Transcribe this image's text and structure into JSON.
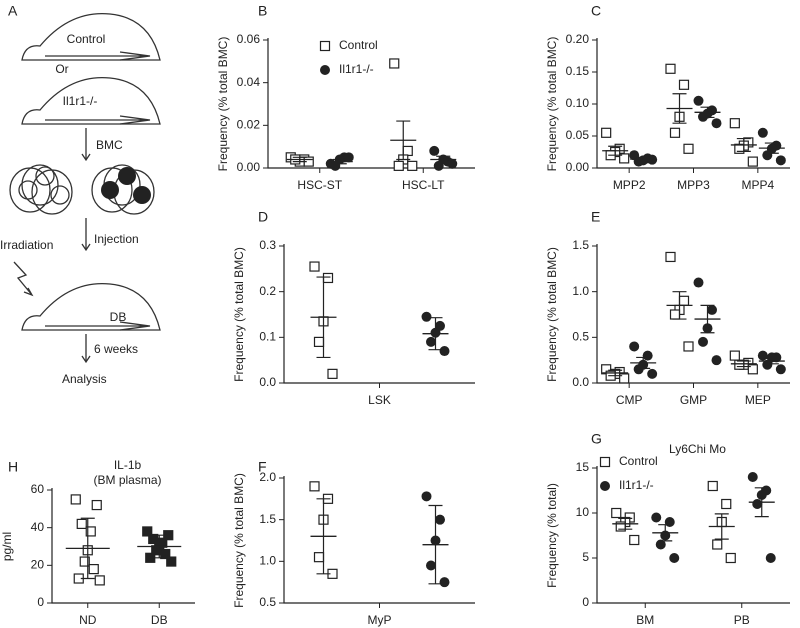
{
  "diagram": {
    "panel": "A",
    "labels": [
      "Control",
      "Or",
      "Il1r1-/-",
      "BMC",
      "Irradiation",
      "Injection",
      "DB",
      "6 weeks",
      "Analysis"
    ]
  },
  "chart_data": [
    {
      "panel": "B",
      "type": "dot",
      "ylabel": "Frequency (% total BMC)",
      "ylim": [
        0,
        0.06
      ],
      "yticks": [
        {
          "value": 0,
          "label": "0.00"
        },
        {
          "value": 0.02,
          "label": "0.02"
        },
        {
          "value": 0.04,
          "label": "0.04"
        },
        {
          "value": 0.06,
          "label": "0.06"
        }
      ],
      "categories": [
        "HSC-ST",
        "HSC-LT"
      ],
      "legend": "upper-left",
      "series": [
        {
          "name": "Control",
          "marker": "open-square",
          "color": "#222222",
          "points": [
            [
              0.005,
              0.004,
              0.003,
              0.004,
              0.003
            ],
            [
              0.049,
              0.008,
              0.004,
              0.001,
              0.001
            ]
          ],
          "mean": [
            0.004,
            0.013
          ],
          "error": [
            0.001,
            0.009
          ]
        },
        {
          "name": "Il1r1-/-",
          "marker": "filled-circle",
          "color": "#222222",
          "points": [
            [
              0.002,
              0.005,
              0.004,
              0.001,
              0.005
            ],
            [
              0.008,
              0.003,
              0.004,
              0.001,
              0.002
            ]
          ],
          "mean": [
            0.003,
            0.004
          ],
          "error": [
            0.001,
            0.0015
          ]
        }
      ]
    },
    {
      "panel": "C",
      "type": "dot",
      "ylabel": "Frequency (% total BMC)",
      "ylim": [
        0,
        0.2
      ],
      "yticks": [
        {
          "value": 0,
          "label": "0.00"
        },
        {
          "value": 0.05,
          "label": "0.05"
        },
        {
          "value": 0.1,
          "label": "0.10"
        },
        {
          "value": 0.15,
          "label": "0.15"
        },
        {
          "value": 0.2,
          "label": "0.20"
        }
      ],
      "categories": [
        "MPP2",
        "MPP3",
        "MPP4"
      ],
      "series": [
        {
          "marker": "open-square",
          "color": "#222222",
          "points": [
            [
              0.055,
              0.03,
              0.025,
              0.02,
              0.015
            ],
            [
              0.155,
              0.13,
              0.08,
              0.055,
              0.03
            ],
            [
              0.07,
              0.04,
              0.035,
              0.03,
              0.01
            ]
          ],
          "mean": [
            0.027,
            0.093,
            0.036
          ],
          "error": [
            0.007,
            0.023,
            0.01
          ]
        },
        {
          "marker": "filled-circle",
          "color": "#222222",
          "points": [
            [
              0.02,
              0.015,
              0.012,
              0.01,
              0.013
            ],
            [
              0.105,
              0.09,
              0.085,
              0.08,
              0.07
            ],
            [
              0.055,
              0.035,
              0.03,
              0.02,
              0.012
            ]
          ],
          "mean": [
            0.014,
            0.087,
            0.031
          ],
          "error": [
            0.002,
            0.008,
            0.008
          ]
        }
      ]
    },
    {
      "panel": "D",
      "type": "dot",
      "ylabel": "Frequency (% total BMC)",
      "ylim": [
        0,
        0.3
      ],
      "yticks": [
        {
          "value": 0,
          "label": "0.0"
        },
        0.1,
        0.2,
        0.3
      ],
      "categories": [
        "LSK"
      ],
      "series": [
        {
          "marker": "open-square",
          "color": "#222222",
          "points": [
            [
              0.255,
              0.23,
              0.135,
              0.09,
              0.02
            ]
          ],
          "mean": [
            0.144
          ],
          "error": [
            0.088
          ]
        },
        {
          "marker": "filled-circle",
          "color": "#222222",
          "points": [
            [
              0.145,
              0.125,
              0.11,
              0.09,
              0.07
            ]
          ],
          "mean": [
            0.108
          ],
          "error": [
            0.035
          ]
        }
      ]
    },
    {
      "panel": "E",
      "type": "dot",
      "ylabel": "Frequency (% total BMC)",
      "ylim": [
        0,
        1.5
      ],
      "yticks": [
        {
          "value": 0,
          "label": "0.0"
        },
        0.5,
        {
          "value": 1,
          "label": "1.0"
        },
        1.5
      ],
      "categories": [
        "CMP",
        "GMP",
        "MEP"
      ],
      "series": [
        {
          "marker": "open-square",
          "color": "#222222",
          "points": [
            [
              0.15,
              0.12,
              0.1,
              0.08,
              0.05
            ],
            [
              1.38,
              0.9,
              0.8,
              0.75,
              0.4
            ],
            [
              0.3,
              0.22,
              0.2,
              0.2,
              0.15
            ]
          ],
          "mean": [
            0.11,
            0.85,
            0.21
          ],
          "error": [
            0.03,
            0.15,
            0.03
          ]
        },
        {
          "marker": "filled-circle",
          "color": "#222222",
          "points": [
            [
              0.4,
              0.3,
              0.2,
              0.15,
              0.1
            ],
            [
              1.1,
              0.8,
              0.6,
              0.45,
              0.25
            ],
            [
              0.3,
              0.28,
              0.28,
              0.2,
              0.15
            ]
          ],
          "mean": [
            0.22,
            0.7,
            0.24
          ],
          "error": [
            0.06,
            0.15,
            0.03
          ]
        }
      ]
    },
    {
      "panel": "H",
      "type": "dot",
      "title": [
        "IL-1b",
        "(BM plasma)"
      ],
      "ylabel": "pg/ml",
      "ylim": [
        0,
        60
      ],
      "yticks": [
        0,
        20,
        40,
        60
      ],
      "categories": [
        "ND",
        "DB"
      ],
      "series": [
        {
          "markers": [
            "open-square",
            "filled-square"
          ],
          "color": "#222222",
          "points": [
            [
              55,
              52,
              42,
              38,
              28,
              22,
              18,
              13,
              12
            ],
            [
              38,
              36,
              34,
              32,
              30,
              28,
              26,
              24,
              22
            ]
          ],
          "mean": [
            29,
            30
          ],
          "error": [
            16,
            6
          ]
        }
      ]
    },
    {
      "panel": "F",
      "type": "dot",
      "ylabel": "Frequency (% total BMC)",
      "ylim": [
        0.5,
        2
      ],
      "yticks": [
        0.5,
        {
          "value": 1,
          "label": "1.0"
        },
        1.5,
        {
          "value": 2,
          "label": "2.0"
        }
      ],
      "categories": [
        "MyP"
      ],
      "series": [
        {
          "marker": "open-square",
          "color": "#222222",
          "points": [
            [
              1.9,
              1.75,
              1.5,
              1.05,
              0.85
            ]
          ],
          "mean": [
            1.3
          ],
          "error": [
            0.45
          ]
        },
        {
          "marker": "filled-circle",
          "color": "#222222",
          "points": [
            [
              1.78,
              1.5,
              1.25,
              0.95,
              0.75
            ]
          ],
          "mean": [
            1.2
          ],
          "error": [
            0.47
          ]
        }
      ]
    },
    {
      "panel": "G",
      "type": "dot",
      "title": [
        "Ly6Chi Mo"
      ],
      "ylabel": "Frequency (% total)",
      "ylim": [
        0,
        15
      ],
      "yticks": [
        0,
        5,
        10,
        15
      ],
      "categories": [
        "BM",
        "PB"
      ],
      "legend": "upper-left",
      "series": [
        {
          "name": "Control",
          "marker": "open-square",
          "color": "#222222",
          "points": [
            [
              10,
              9.5,
              9,
              8.5,
              7
            ],
            [
              13,
              11,
              9,
              6.5,
              5
            ]
          ],
          "mean": [
            8.8,
            8.5
          ],
          "error": [
            0.6,
            1.4
          ]
        },
        {
          "name": "Il1r1-/-",
          "marker": "filled-circle",
          "color": "#222222",
          "points": [
            [
              9.5,
              9,
              7.5,
              6.5,
              5
            ],
            [
              14,
              12.5,
              12,
              11,
              5
            ]
          ],
          "mean": [
            7.8,
            11.2
          ],
          "error": [
            0.9,
            1.6
          ]
        }
      ]
    }
  ]
}
